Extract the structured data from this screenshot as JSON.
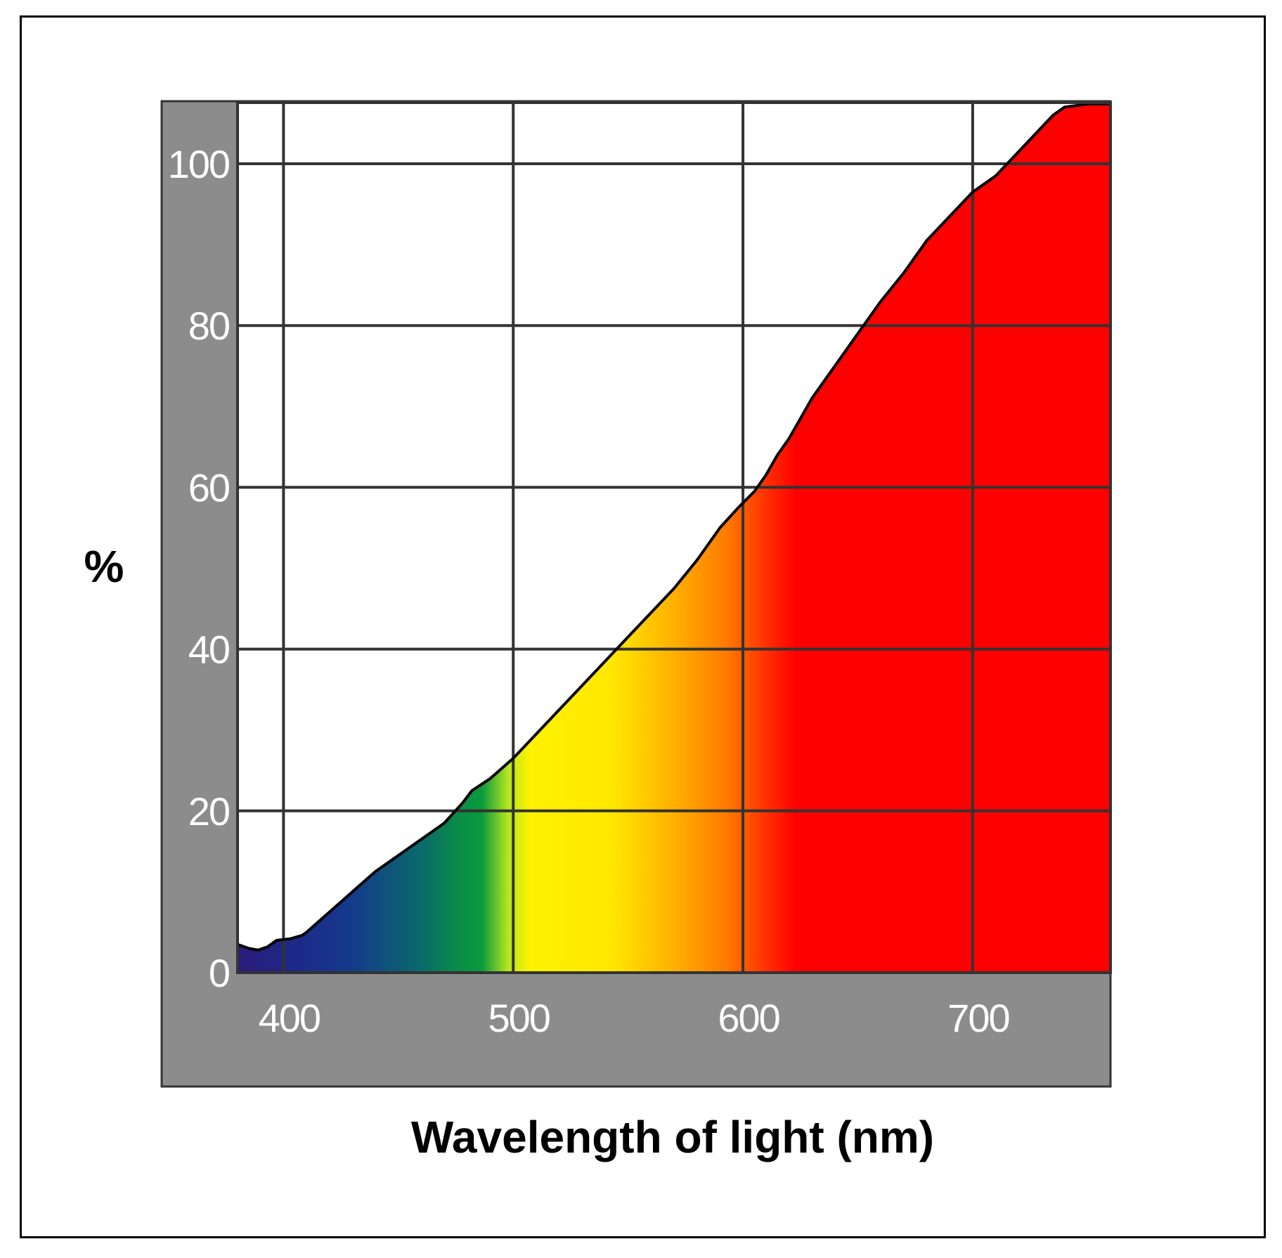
{
  "chart_data": {
    "type": "area",
    "title": "",
    "xlabel": "Wavelength of light (nm)",
    "ylabel": "%",
    "xlim": [
      380,
      760
    ],
    "ylim": [
      0,
      107
    ],
    "x_ticks": [
      400,
      500,
      600,
      700
    ],
    "y_ticks": [
      0,
      20,
      40,
      60,
      80,
      100
    ],
    "grid": true,
    "colors": {
      "axis_band": "#8c8c8c",
      "grid": "#333333",
      "curve": "#000000",
      "violet": "#2b1b7a",
      "blue": "#143a8c",
      "teal": "#0a6a6a",
      "green": "#0a9a3c",
      "yellow": "#fff200",
      "orange": "#ff8c00",
      "red": "#ff0000"
    },
    "series": [
      {
        "x": [
          380,
          385,
          389,
          393,
          397,
          403,
          408,
          410,
          420,
          430,
          440,
          450,
          460,
          470,
          478,
          482,
          490,
          500,
          510,
          520,
          530,
          540,
          550,
          560,
          570,
          580,
          590,
          598,
          605,
          610,
          615,
          620,
          625,
          630,
          640,
          650,
          660,
          670,
          680,
          690,
          700,
          710,
          720,
          730,
          735,
          740,
          750,
          760
        ],
        "y": [
          3.5,
          3,
          2.8,
          3.2,
          4,
          4.2,
          4.6,
          5,
          7.5,
          10,
          12.5,
          14.5,
          16.5,
          18.5,
          21,
          22.5,
          24,
          26.5,
          29.5,
          32.5,
          35.5,
          38.5,
          41.5,
          44.5,
          47.5,
          51,
          55,
          57.5,
          59.5,
          61.5,
          64,
          66,
          68.5,
          71,
          75,
          79,
          83,
          86.5,
          90.5,
          93.5,
          96.5,
          98.5,
          101.5,
          104.5,
          106,
          107,
          108.5,
          107.5
        ]
      }
    ]
  }
}
